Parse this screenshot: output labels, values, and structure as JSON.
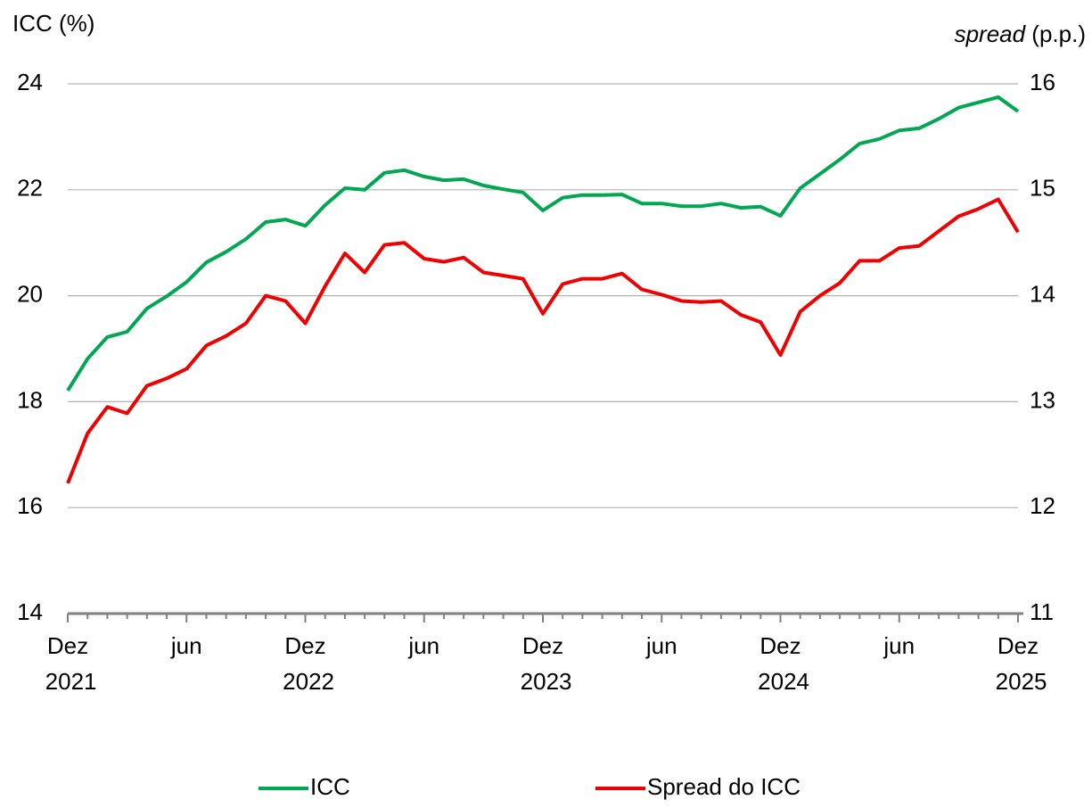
{
  "chart_data": {
    "type": "line",
    "y_label": "ICC (%)",
    "y2_label": "spread (p.p.)",
    "categories": [
      "Dez 2021",
      null,
      null,
      null,
      null,
      null,
      "jun",
      null,
      null,
      null,
      null,
      null,
      "Dez 2022",
      null,
      null,
      null,
      null,
      null,
      "jun",
      null,
      null,
      null,
      null,
      null,
      "Dez 2023",
      null,
      null,
      null,
      null,
      null,
      "jun",
      null,
      null,
      null,
      null,
      null,
      "Dez 2024",
      null,
      null,
      null,
      null,
      null,
      "jun",
      null,
      null,
      null,
      null,
      null,
      "Dez 2025"
    ],
    "series": [
      {
        "name": "ICC",
        "color": "#00a651",
        "axis": "y",
        "values": [
          18.21,
          18.81,
          19.22,
          19.32,
          19.76,
          19.99,
          20.26,
          20.63,
          20.83,
          21.07,
          21.39,
          21.44,
          21.32,
          21.71,
          22.03,
          22.0,
          22.32,
          22.37,
          22.25,
          22.18,
          22.2,
          22.08,
          22.01,
          21.95,
          21.61,
          21.85,
          21.9,
          21.9,
          21.91,
          21.74,
          21.74,
          21.69,
          21.69,
          21.74,
          21.66,
          21.68,
          21.51,
          22.03,
          22.3,
          22.57,
          22.87,
          22.96,
          23.12,
          23.16,
          23.34,
          23.55,
          23.65,
          23.75,
          23.48
        ]
      },
      {
        "name": "Spread do ICC",
        "color": "#ee0000",
        "axis": "y2",
        "values": [
          12.23,
          12.7,
          12.95,
          12.89,
          13.15,
          13.22,
          13.31,
          13.53,
          13.62,
          13.74,
          14.0,
          13.95,
          13.74,
          14.09,
          14.4,
          14.22,
          14.48,
          14.5,
          14.35,
          14.32,
          14.36,
          14.22,
          14.19,
          14.16,
          13.83,
          14.11,
          14.16,
          14.16,
          14.21,
          14.06,
          14.01,
          13.95,
          13.94,
          13.95,
          13.82,
          13.75,
          13.44,
          13.85,
          14.0,
          14.12,
          14.33,
          14.33,
          14.45,
          14.47,
          14.61,
          14.75,
          14.82,
          14.91,
          14.6
        ]
      }
    ],
    "ylim": [
      14,
      24
    ],
    "yticks": [
      14,
      16,
      18,
      20,
      22,
      24
    ],
    "y2lim": [
      11,
      16
    ],
    "y2ticks": [
      11,
      12,
      13,
      14,
      15,
      16
    ],
    "grid": true,
    "legend": "bottom"
  }
}
